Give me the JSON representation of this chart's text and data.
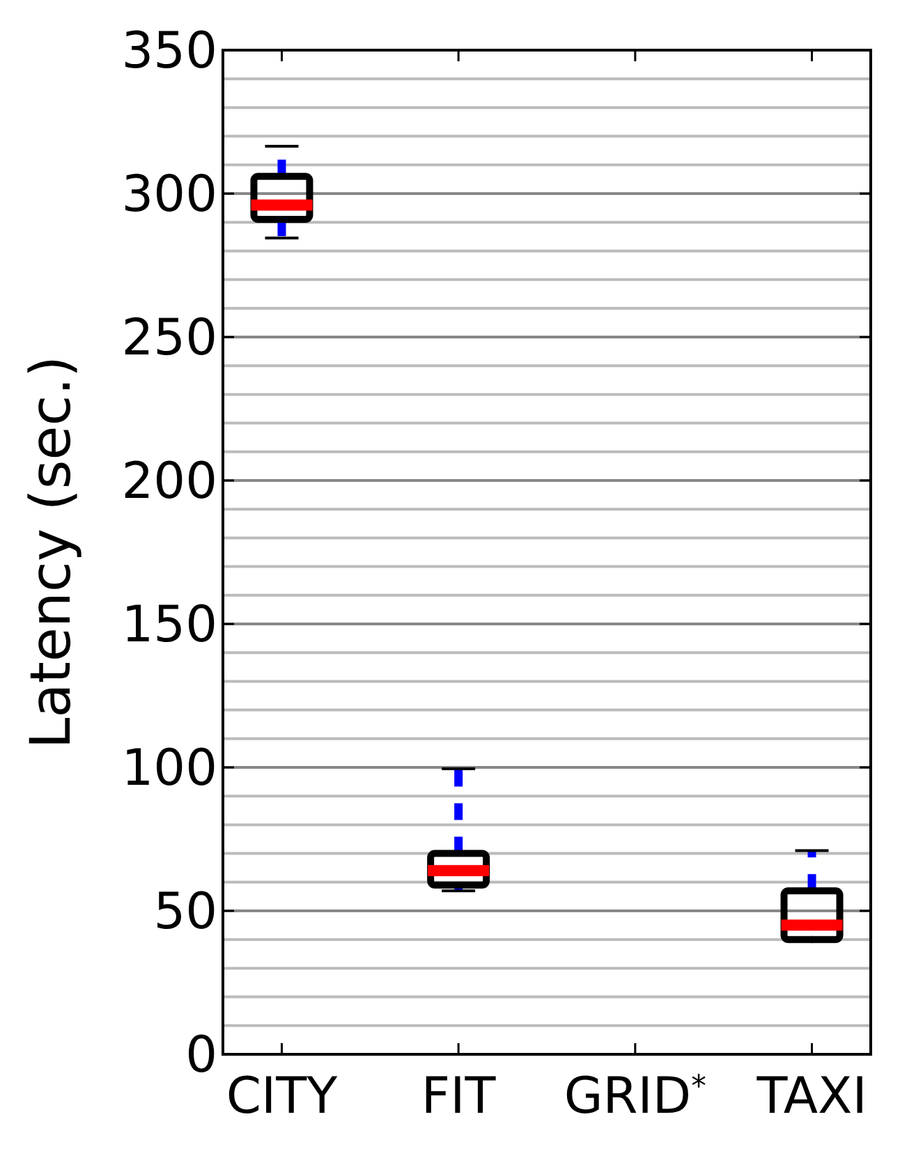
{
  "chart_data": {
    "type": "box",
    "ylabel": "Latency (sec.)",
    "categories": [
      "CITY",
      "FIT",
      "GRID$^{*}$",
      "TAXI"
    ],
    "series": [
      {
        "color": "#000000",
        "boxes": [
          {
            "low": 284.5,
            "q1": 291,
            "median": 296,
            "q3": 306,
            "high": 316.5
          },
          {
            "low": 57,
            "q1": 59,
            "median": 64,
            "q3": 70,
            "high": 99.5
          },
          null,
          {
            "low": 40,
            "q1": 40,
            "median": 45,
            "q3": 57,
            "high": 71
          }
        ]
      }
    ],
    "ylim": [
      0,
      350
    ],
    "yticks": [
      0,
      {
        "value": 10,
        "label": null
      },
      {
        "value": 20,
        "label": null
      },
      {
        "value": 30,
        "label": null
      },
      {
        "value": 40,
        "label": null
      },
      50,
      {
        "value": 60,
        "label": null
      },
      {
        "value": 70,
        "label": null
      },
      {
        "value": 80,
        "label": null
      },
      {
        "value": 90,
        "label": null
      },
      100,
      {
        "value": 110,
        "label": null
      },
      {
        "value": 120,
        "label": null
      },
      {
        "value": 130,
        "label": null
      },
      {
        "value": 140,
        "label": null
      },
      150,
      {
        "value": 160,
        "label": null
      },
      {
        "value": 170,
        "label": null
      },
      {
        "value": 180,
        "label": null
      },
      {
        "value": 190,
        "label": null
      },
      200,
      {
        "value": 210,
        "label": null
      },
      {
        "value": 220,
        "label": null
      },
      {
        "value": 230,
        "label": null
      },
      {
        "value": 240,
        "label": null
      },
      250,
      {
        "value": 260,
        "label": null
      },
      {
        "value": 270,
        "label": null
      },
      {
        "value": 280,
        "label": null
      },
      {
        "value": 290,
        "label": null
      },
      300,
      {
        "value": 310,
        "label": null
      },
      {
        "value": 320,
        "label": null
      },
      {
        "value": 330,
        "label": null
      },
      {
        "value": 340,
        "label": null
      },
      350
    ],
    "grid": true
  }
}
